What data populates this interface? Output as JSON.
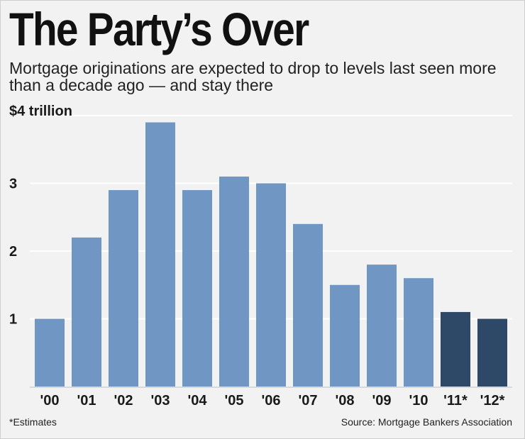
{
  "title": "The Party’s Over",
  "subtitle": "Mortgage originations are expected to drop to levels last seen more than a decade ago — and stay there",
  "footnote": "*Estimates",
  "source": "Source: Mortgage Bankers Association",
  "colors": {
    "actual": "#7096c3",
    "estimate": "#2e4868",
    "grid": "#ffffff",
    "background": "#f2f2f2"
  },
  "chart_data": {
    "type": "bar",
    "categories": [
      "'00",
      "'01",
      "'02",
      "'03",
      "'04",
      "'05",
      "'06",
      "'07",
      "'08",
      "'09",
      "'10",
      "'11*",
      "'12*"
    ],
    "values": [
      1.0,
      2.2,
      2.9,
      3.9,
      2.9,
      3.1,
      3.0,
      2.4,
      1.5,
      1.8,
      1.6,
      1.1,
      1.0
    ],
    "estimated": [
      false,
      false,
      false,
      false,
      false,
      false,
      false,
      false,
      false,
      false,
      false,
      true,
      true
    ],
    "ylim": [
      0,
      4
    ],
    "y_ticks": [
      {
        "value": 4,
        "label": "$4 trillion"
      },
      {
        "value": 3,
        "label": "3"
      },
      {
        "value": 2,
        "label": "2"
      },
      {
        "value": 1,
        "label": "1"
      }
    ],
    "grid": true
  }
}
